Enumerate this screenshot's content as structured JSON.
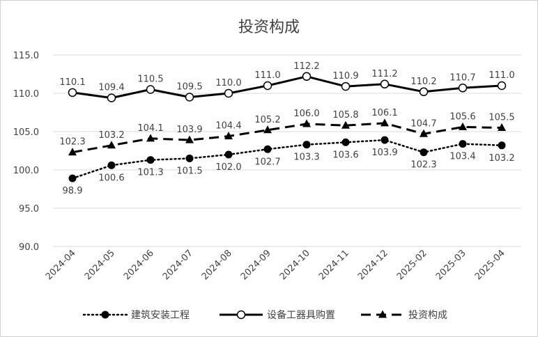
{
  "chart_data": {
    "type": "line",
    "title": "投资构成",
    "categories": [
      "2024-04",
      "2024-05",
      "2024-06",
      "2024-07",
      "2024-08",
      "2024-09",
      "2024-10",
      "2024-11",
      "2024-12",
      "2025-02",
      "2025-03",
      "2025-04"
    ],
    "ylim": [
      90,
      115
    ],
    "yticks": [
      "90.0",
      "95.0",
      "100.0",
      "105.0",
      "110.0",
      "115.0"
    ],
    "grid": "horizontal",
    "legend_position": "bottom",
    "series": [
      {
        "name": "建筑安装工程",
        "style": "dotted",
        "marker": "filled-circle",
        "label_position": "below",
        "values": [
          98.9,
          100.6,
          101.3,
          101.5,
          102.0,
          102.7,
          103.3,
          103.6,
          103.9,
          102.3,
          103.4,
          103.2
        ]
      },
      {
        "name": "设备工器具购置",
        "style": "solid",
        "marker": "hollow-circle",
        "label_position": "above",
        "values": [
          110.1,
          109.4,
          110.5,
          109.5,
          110.0,
          111.0,
          112.2,
          110.9,
          111.2,
          110.2,
          110.7,
          111.0
        ]
      },
      {
        "name": "投资构成",
        "style": "dashed",
        "marker": "triangle",
        "label_position": "above",
        "values": [
          102.3,
          103.2,
          104.1,
          103.9,
          104.4,
          105.2,
          106.0,
          105.8,
          106.1,
          104.7,
          105.6,
          105.5
        ]
      }
    ],
    "colors": {
      "line": "#000000",
      "grid": "#d9d9d9",
      "text": "#404040"
    }
  }
}
